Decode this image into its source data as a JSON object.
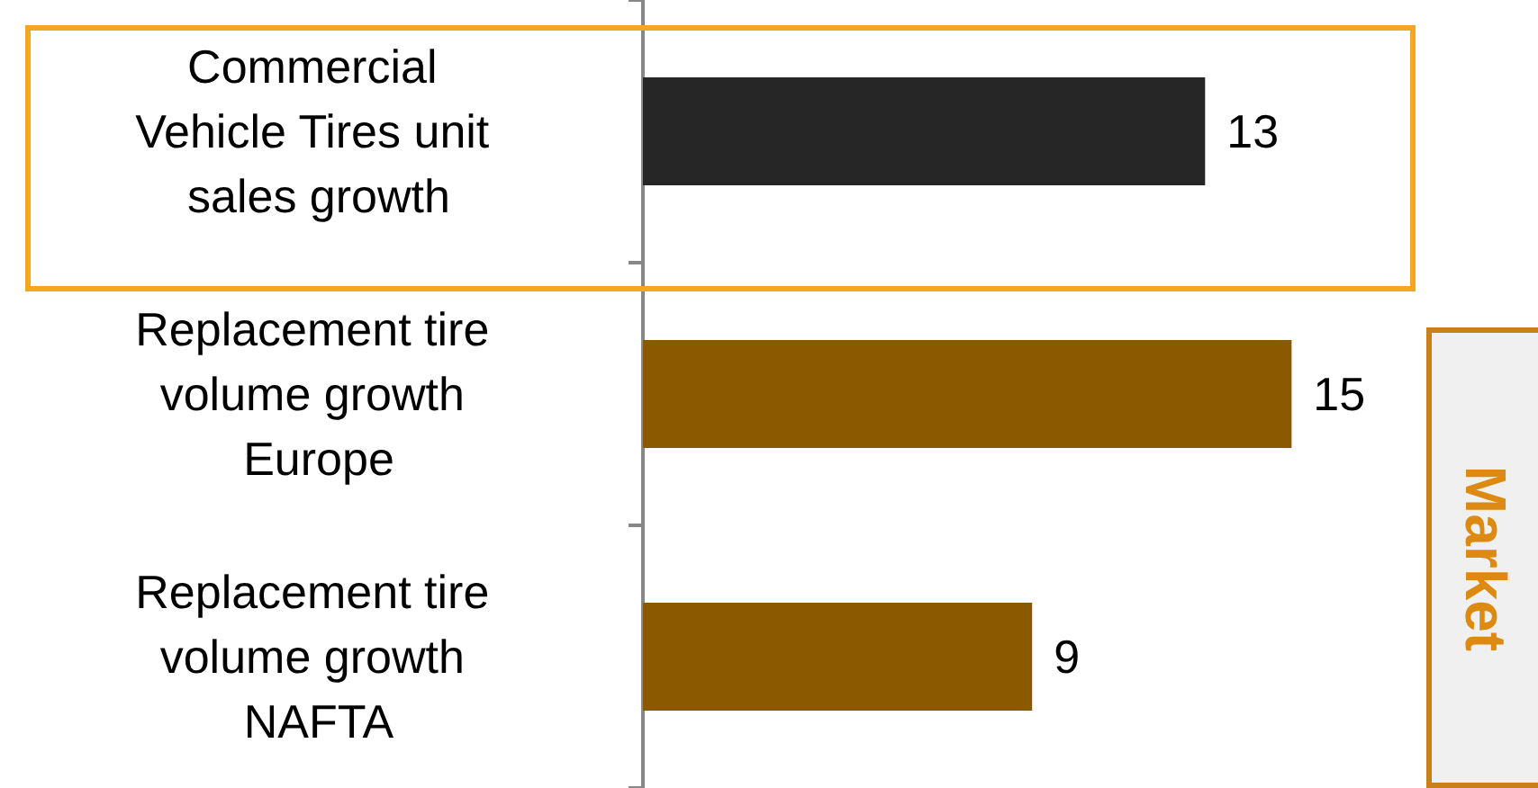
{
  "chart_data": {
    "type": "bar",
    "orientation": "horizontal",
    "categories": [
      "Commercial Vehicle Tires unit sales growth",
      "Replacement tire volume growth Europe",
      "Replacement tire volume growth NAFTA"
    ],
    "values": [
      13,
      15,
      9
    ],
    "colors": [
      "#262626",
      "#8b5a00",
      "#8b5a00"
    ],
    "data_labels": true,
    "tick_labels": "y",
    "grid": false,
    "annotations": [
      "Market"
    ]
  }
}
